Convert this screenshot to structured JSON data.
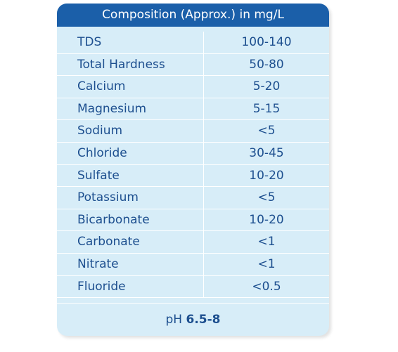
{
  "header": {
    "title": "Composition (Approx.) in mg/L"
  },
  "table": {
    "rows": [
      [
        "TDS",
        "100-140"
      ],
      [
        "Total Hardness",
        "50-80"
      ],
      [
        "Calcium",
        "5-20"
      ],
      [
        "Magnesium",
        "5-15"
      ],
      [
        "Sodium",
        "<5"
      ],
      [
        "Chloride",
        "30-45"
      ],
      [
        "Sulfate",
        "10-20"
      ],
      [
        "Potassium",
        "<5"
      ],
      [
        "Bicarbonate",
        "10-20"
      ],
      [
        "Carbonate",
        "<1"
      ],
      [
        "Nitrate",
        "<1"
      ],
      [
        "Fluoride",
        "<0.5"
      ]
    ]
  },
  "footer": {
    "label": "pH",
    "value": "6.5-8"
  }
}
